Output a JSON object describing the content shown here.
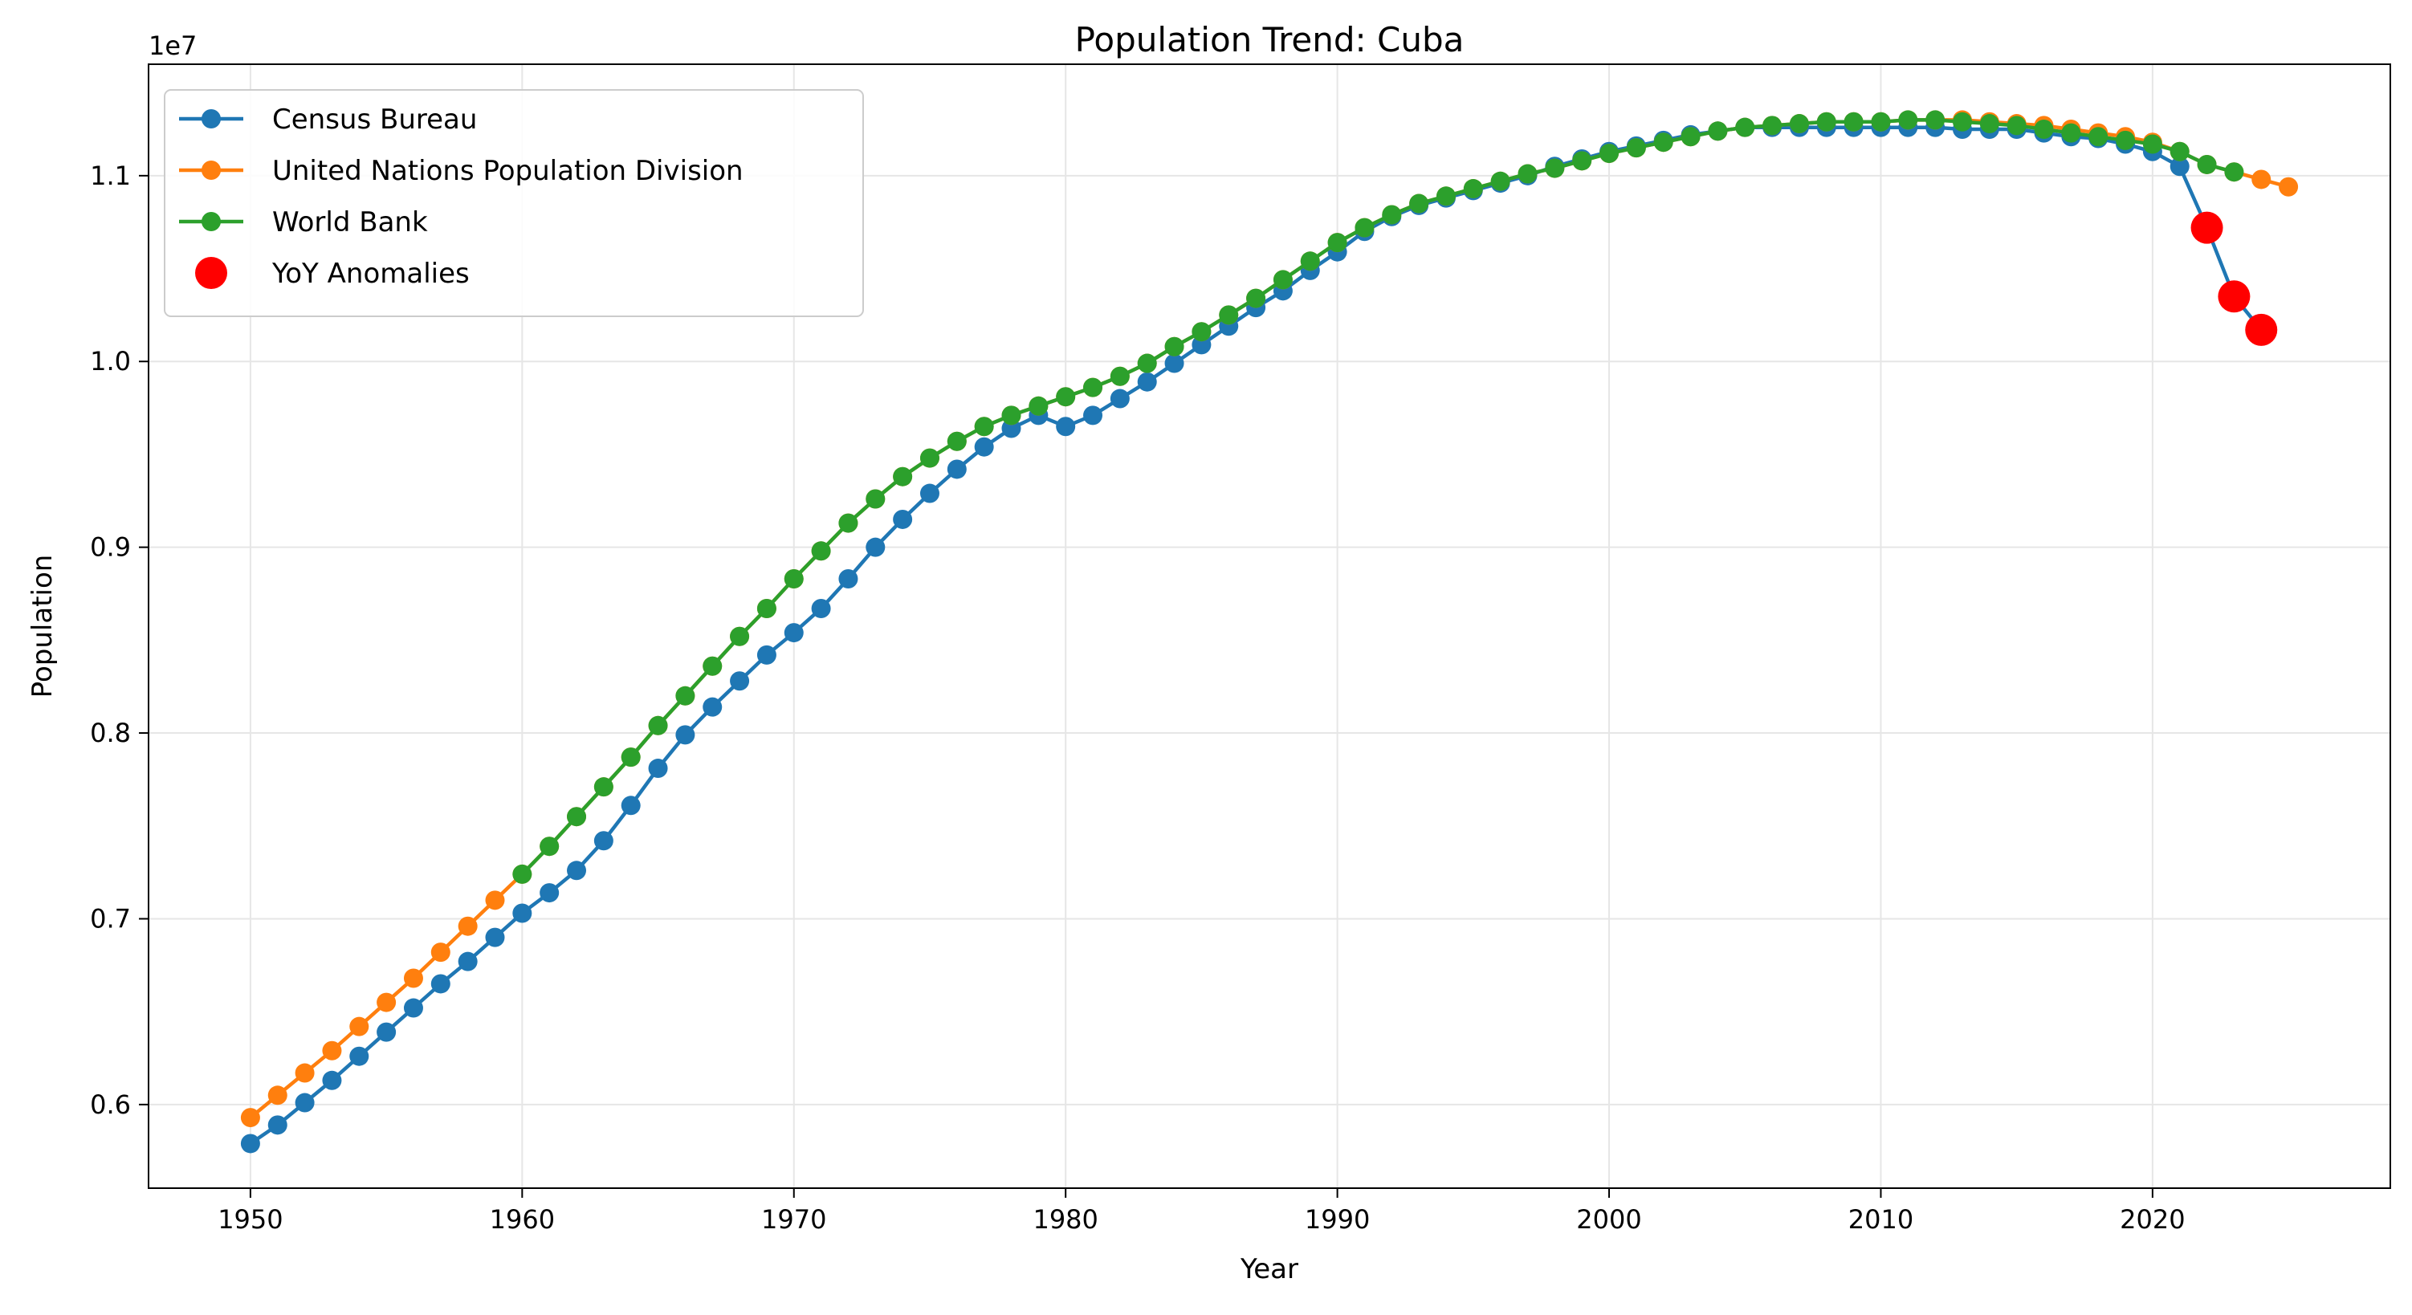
{
  "chart_data": {
    "type": "line",
    "title": "Population Trend: Cuba",
    "xlabel": "Year",
    "ylabel": "Population",
    "y_offset_label": "1e7",
    "y_scale": 10000000,
    "xlim": [
      1946.25,
      2028.75
    ],
    "ylim": [
      5550000,
      11600000
    ],
    "x_ticks": [
      1950,
      1960,
      1970,
      1980,
      1990,
      2000,
      2010,
      2020
    ],
    "x_tick_labels": [
      "1950",
      "1960",
      "1970",
      "1980",
      "1990",
      "2000",
      "2010",
      "2020"
    ],
    "y_ticks": [
      6000000,
      7000000,
      8000000,
      9000000,
      10000000,
      11000000
    ],
    "y_tick_labels": [
      "0.6",
      "0.7",
      "0.8",
      "0.9",
      "1.0",
      "1.1"
    ],
    "grid": true,
    "legend_position": "upper-left",
    "series": [
      {
        "name": "Census Bureau",
        "color": "#1f77b4",
        "x": [
          1950,
          1951,
          1952,
          1953,
          1954,
          1955,
          1956,
          1957,
          1958,
          1959,
          1960,
          1961,
          1962,
          1963,
          1964,
          1965,
          1966,
          1967,
          1968,
          1969,
          1970,
          1971,
          1972,
          1973,
          1974,
          1975,
          1976,
          1977,
          1978,
          1979,
          1980,
          1981,
          1982,
          1983,
          1984,
          1985,
          1986,
          1987,
          1988,
          1989,
          1990,
          1991,
          1992,
          1993,
          1994,
          1995,
          1996,
          1997,
          1998,
          1999,
          2000,
          2001,
          2002,
          2003,
          2004,
          2005,
          2006,
          2007,
          2008,
          2009,
          2010,
          2011,
          2012,
          2013,
          2014,
          2015,
          2016,
          2017,
          2018,
          2019,
          2020,
          2021,
          2022,
          2023,
          2024
        ],
        "y": [
          5790000,
          5890000,
          6010000,
          6130000,
          6260000,
          6390000,
          6520000,
          6650000,
          6770000,
          6900000,
          7030000,
          7140000,
          7260000,
          7420000,
          7610000,
          7810000,
          7990000,
          8140000,
          8280000,
          8420000,
          8540000,
          8670000,
          8830000,
          9000000,
          9150000,
          9290000,
          9420000,
          9540000,
          9640000,
          9710000,
          9650000,
          9710000,
          9800000,
          9890000,
          9990000,
          10090000,
          10190000,
          10290000,
          10380000,
          10490000,
          10590000,
          10700000,
          10780000,
          10840000,
          10880000,
          10920000,
          10960000,
          11000000,
          11050000,
          11090000,
          11130000,
          11160000,
          11190000,
          11220000,
          11240000,
          11260000,
          11260000,
          11260000,
          11260000,
          11260000,
          11260000,
          11260000,
          11260000,
          11250000,
          11250000,
          11250000,
          11230000,
          11210000,
          11200000,
          11170000,
          11130000,
          11050000,
          10720000,
          10350000,
          10170000
        ]
      },
      {
        "name": "United Nations Population Division",
        "color": "#ff7f0e",
        "x": [
          1950,
          1951,
          1952,
          1953,
          1954,
          1955,
          1956,
          1957,
          1958,
          1959,
          1960,
          1961,
          1962,
          1963,
          1964,
          1965,
          1966,
          1967,
          1968,
          1969,
          1970,
          1971,
          1972,
          1973,
          1974,
          1975,
          1976,
          1977,
          1978,
          1979,
          1980,
          1981,
          1982,
          1983,
          1984,
          1985,
          1986,
          1987,
          1988,
          1989,
          1990,
          1991,
          1992,
          1993,
          1994,
          1995,
          1996,
          1997,
          1998,
          1999,
          2000,
          2001,
          2002,
          2003,
          2004,
          2005,
          2006,
          2007,
          2008,
          2009,
          2010,
          2011,
          2012,
          2013,
          2014,
          2015,
          2016,
          2017,
          2018,
          2019,
          2020,
          2021,
          2022,
          2023,
          2024,
          2025
        ],
        "y": [
          5930000,
          6050000,
          6170000,
          6290000,
          6420000,
          6550000,
          6680000,
          6820000,
          6960000,
          7100000,
          7240000,
          7390000,
          7550000,
          7710000,
          7870000,
          8040000,
          8200000,
          8360000,
          8520000,
          8670000,
          8830000,
          8980000,
          9130000,
          9260000,
          9380000,
          9480000,
          9570000,
          9650000,
          9710000,
          9760000,
          9810000,
          9860000,
          9920000,
          9990000,
          10080000,
          10160000,
          10250000,
          10340000,
          10440000,
          10540000,
          10640000,
          10720000,
          10790000,
          10850000,
          10890000,
          10930000,
          10970000,
          11010000,
          11040000,
          11080000,
          11120000,
          11150000,
          11180000,
          11210000,
          11240000,
          11260000,
          11270000,
          11280000,
          11290000,
          11290000,
          11290000,
          11300000,
          11300000,
          11300000,
          11290000,
          11280000,
          11270000,
          11250000,
          11230000,
          11210000,
          11180000,
          11130000,
          11060000,
          11020000,
          10980000,
          10940000
        ]
      },
      {
        "name": "World Bank",
        "color": "#2ca02c",
        "x": [
          1960,
          1961,
          1962,
          1963,
          1964,
          1965,
          1966,
          1967,
          1968,
          1969,
          1970,
          1971,
          1972,
          1973,
          1974,
          1975,
          1976,
          1977,
          1978,
          1979,
          1980,
          1981,
          1982,
          1983,
          1984,
          1985,
          1986,
          1987,
          1988,
          1989,
          1990,
          1991,
          1992,
          1993,
          1994,
          1995,
          1996,
          1997,
          1998,
          1999,
          2000,
          2001,
          2002,
          2003,
          2004,
          2005,
          2006,
          2007,
          2008,
          2009,
          2010,
          2011,
          2012,
          2013,
          2014,
          2015,
          2016,
          2017,
          2018,
          2019,
          2020,
          2021,
          2022,
          2023
        ],
        "y": [
          7240000,
          7390000,
          7550000,
          7710000,
          7870000,
          8040000,
          8200000,
          8360000,
          8520000,
          8670000,
          8830000,
          8980000,
          9130000,
          9260000,
          9380000,
          9480000,
          9570000,
          9650000,
          9710000,
          9760000,
          9810000,
          9860000,
          9920000,
          9990000,
          10080000,
          10160000,
          10250000,
          10340000,
          10440000,
          10540000,
          10640000,
          10720000,
          10790000,
          10850000,
          10890000,
          10930000,
          10970000,
          11010000,
          11040000,
          11080000,
          11120000,
          11150000,
          11180000,
          11210000,
          11240000,
          11260000,
          11270000,
          11280000,
          11290000,
          11290000,
          11290000,
          11300000,
          11300000,
          11290000,
          11280000,
          11270000,
          11250000,
          11230000,
          11210000,
          11190000,
          11170000,
          11130000,
          11060000,
          11020000
        ]
      },
      {
        "name": "YoY Anomalies",
        "color": "#ff0000",
        "kind": "scatter",
        "x": [
          2022,
          2023,
          2024
        ],
        "y": [
          10720000,
          10350000,
          10170000
        ]
      }
    ]
  }
}
